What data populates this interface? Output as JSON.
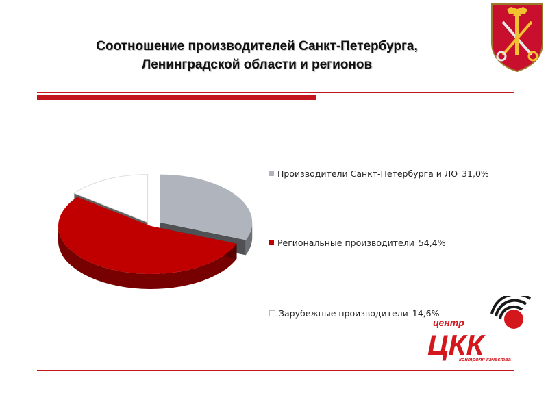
{
  "slide": {
    "title_line1": "Соотношение  производителей Санкт-Петербурга,",
    "title_line2": "Ленинградской области и регионов"
  },
  "logo": {
    "top_text": "центр",
    "main_text": "ЦКК",
    "bottom_text": "контроля качества"
  },
  "emblem": {
    "icon": "saint-petersburg-coat-of-arms-icon"
  },
  "colors": {
    "accent": "#c3161c",
    "spb_lo": "#b0b5bd",
    "regional": "#c00000",
    "foreign": "#ffffff"
  },
  "chart_data": {
    "type": "pie",
    "title": "",
    "legend_position": "right",
    "slices": [
      {
        "label": "Производители Санкт-Петербурга и ЛО",
        "value": 31.0,
        "value_label": "31,0%",
        "color": "#b0b5bd"
      },
      {
        "label": "Региональные производители",
        "value": 54.4,
        "value_label": "54,4%",
        "color": "#c00000"
      },
      {
        "label": "Зарубежные производители",
        "value": 14.6,
        "value_label": "14,6%",
        "color": "#ffffff"
      }
    ]
  }
}
